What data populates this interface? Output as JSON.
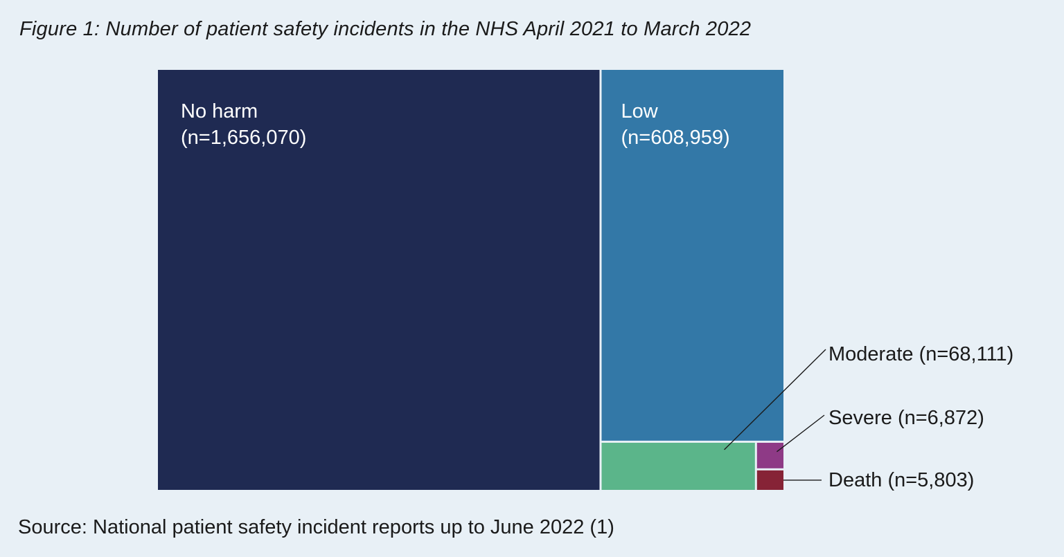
{
  "title": "Figure 1: Number of patient safety incidents in the NHS April 2021 to March 2022",
  "source": "Source: National patient safety incident reports up to June 2022 (1)",
  "chart_data": {
    "type": "treemap",
    "title": "Figure 1: Number of patient safety incidents in the NHS April 2021 to March 2022",
    "series": [
      {
        "name": "No harm",
        "value": 1656070,
        "label_line1": "No harm",
        "label_line2": "(n=1,656,070)",
        "color": "#1f2a52"
      },
      {
        "name": "Low",
        "value": 608959,
        "label_line1": "Low",
        "label_line2": "(n=608,959)",
        "color": "#3378a7"
      },
      {
        "name": "Moderate",
        "value": 68111,
        "label": "Moderate (n=68,111)",
        "color": "#5bb58a"
      },
      {
        "name": "Severe",
        "value": 6872,
        "label": "Severe (n=6,872)",
        "color": "#8e3a86"
      },
      {
        "name": "Death",
        "value": 5803,
        "label": "Death (n=5,803)",
        "color": "#862336"
      }
    ]
  }
}
